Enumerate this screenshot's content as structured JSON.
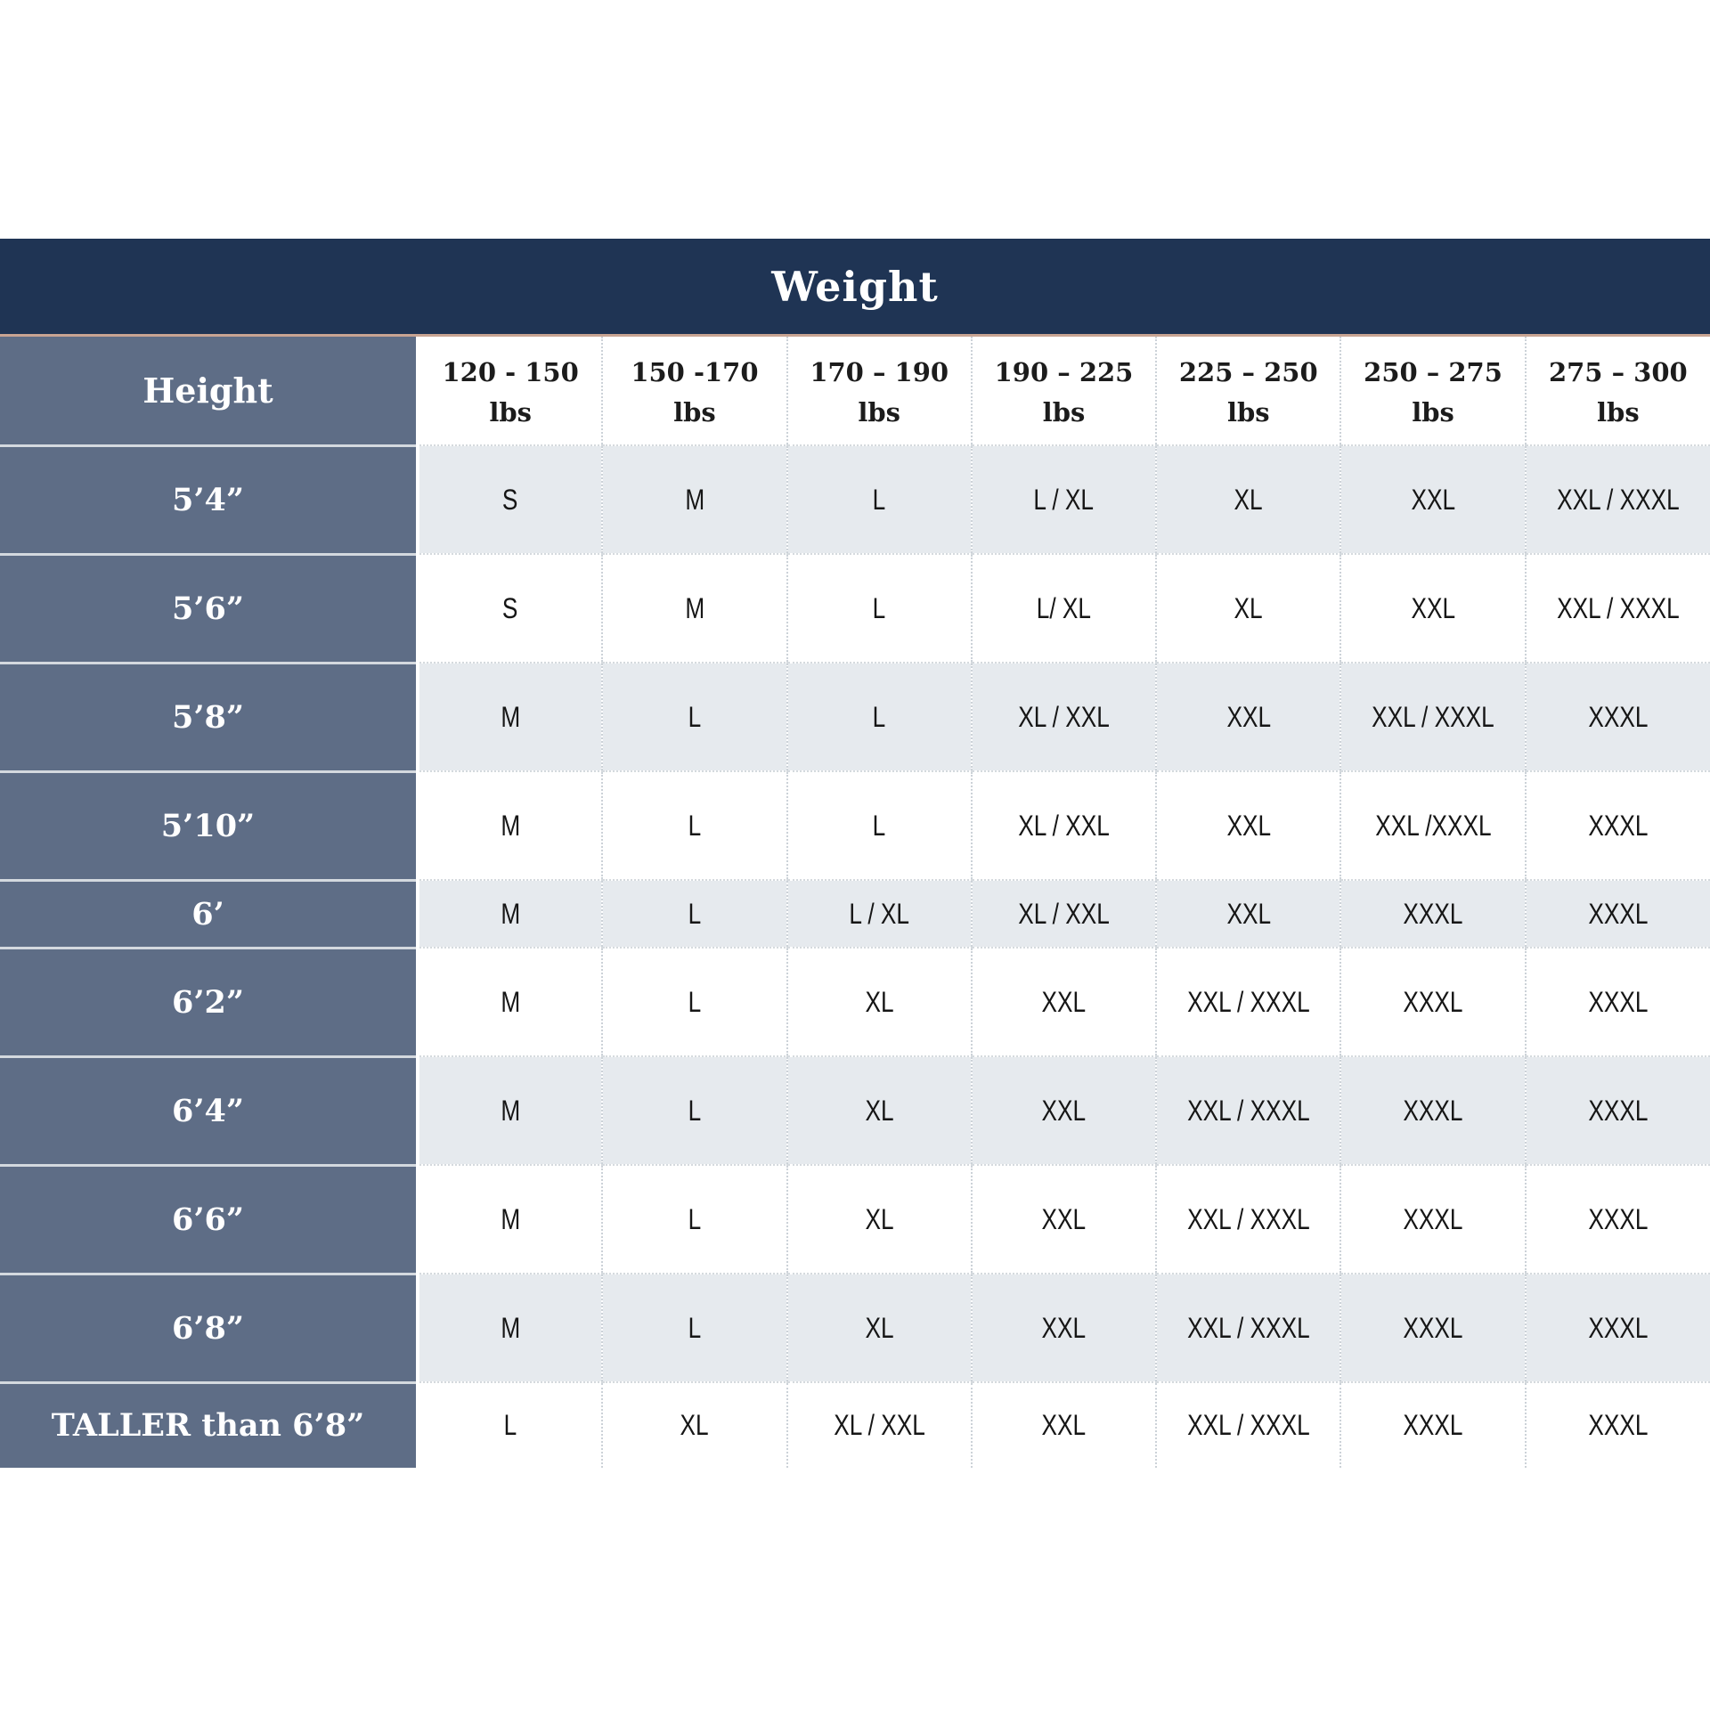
{
  "chart_data": {
    "type": "table",
    "title": "Weight",
    "height_header": "Height",
    "unit": "lbs",
    "columns": [
      "120 - 150",
      "150 -170",
      "170 – 190",
      "190 – 225",
      "225 – 250",
      "250 – 275",
      "275 – 300"
    ],
    "rows": [
      {
        "height": "5’4”",
        "sizes": [
          "S",
          "M",
          "L",
          "L / XL",
          "XL",
          "XXL",
          "XXL / XXXL"
        ]
      },
      {
        "height": "5’6”",
        "sizes": [
          "S",
          "M",
          "L",
          "L/ XL",
          "XL",
          "XXL",
          "XXL / XXXL"
        ]
      },
      {
        "height": "5’8”",
        "sizes": [
          "M",
          "L",
          "L",
          "XL / XXL",
          "XXL",
          "XXL / XXXL",
          "XXXL"
        ]
      },
      {
        "height": "5’10”",
        "sizes": [
          "M",
          "L",
          "L",
          "XL / XXL",
          "XXL",
          "XXL /XXXL",
          "XXXL"
        ]
      },
      {
        "height": "6’",
        "sizes": [
          "M",
          "L",
          "L / XL",
          "XL / XXL",
          "XXL",
          "XXXL",
          "XXXL"
        ]
      },
      {
        "height": "6’2”",
        "sizes": [
          "M",
          "L",
          "XL",
          "XXL",
          "XXL / XXXL",
          "XXXL",
          "XXXL"
        ]
      },
      {
        "height": "6’4”",
        "sizes": [
          "M",
          "L",
          "XL",
          "XXL",
          "XXL / XXXL",
          "XXXL",
          "XXXL"
        ]
      },
      {
        "height": "6’6”",
        "sizes": [
          "M",
          "L",
          "XL",
          "XXL",
          "XXL / XXXL",
          "XXXL",
          "XXXL"
        ]
      },
      {
        "height": "6’8”",
        "sizes": [
          "M",
          "L",
          "XL",
          "XXL",
          "XXL / XXXL",
          "XXXL",
          "XXXL"
        ]
      },
      {
        "height": "TALLER than 6’8”",
        "sizes": [
          "L",
          "XL",
          "XL / XXL",
          "XXL",
          "XXL / XXXL",
          "XXXL",
          "XXXL"
        ]
      }
    ],
    "colors": {
      "title_bar_bg": "#1f3454",
      "title_bar_accent_line": "#c8a493",
      "height_column_bg": "#5e6d86",
      "row_alt_bg": "#e6eaee",
      "row_bg": "#ffffff",
      "text_dark": "#161616",
      "text_light": "#ffffff"
    }
  }
}
